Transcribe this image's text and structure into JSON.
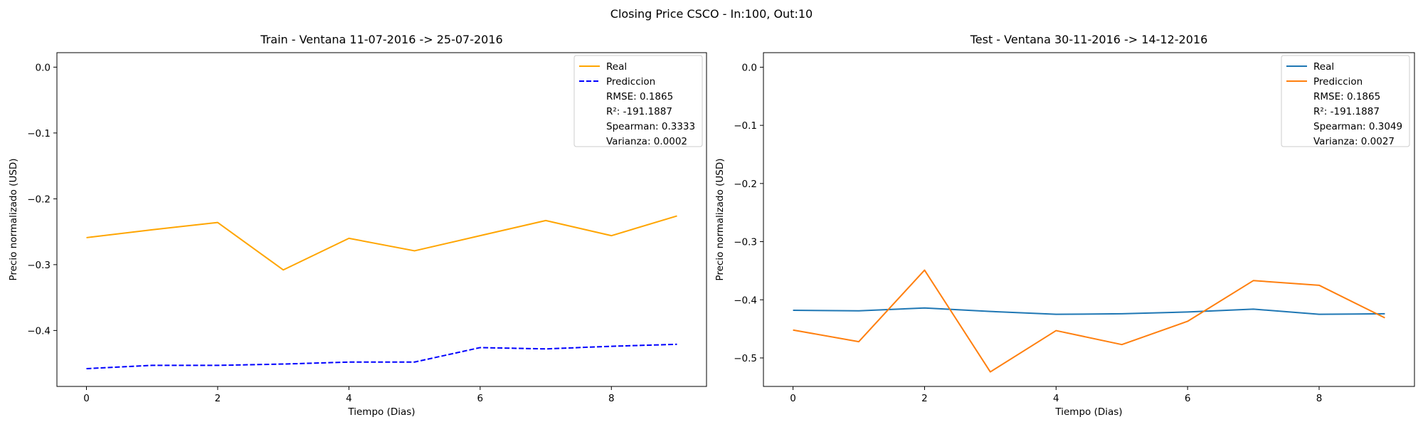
{
  "suptitle": "Closing Price CSCO - In:100, Out:10",
  "chart_data": [
    {
      "type": "line",
      "title": "Train - Ventana 11-07-2016 -> 25-07-2016",
      "xlabel": "Tiempo (Dias)",
      "ylabel": "Precio normalizado (USD)",
      "x": [
        0,
        1,
        2,
        3,
        4,
        5,
        6,
        7,
        8,
        9
      ],
      "xlim": [
        -0.45,
        9.45
      ],
      "ylim": [
        -0.485,
        0.022
      ],
      "xticks": [
        0,
        2,
        4,
        6,
        8
      ],
      "yticks": [
        0.0,
        -0.1,
        -0.2,
        -0.3,
        -0.4
      ],
      "ytick_labels": [
        "0.0",
        "−0.1",
        "−0.2",
        "−0.3",
        "−0.4"
      ],
      "grid": false,
      "legend_position": "top-right",
      "series": [
        {
          "name": "Real",
          "color": "#ffa500",
          "style": "solid",
          "values": [
            -0.259,
            -0.247,
            -0.236,
            -0.308,
            -0.26,
            -0.279,
            -0.256,
            -0.233,
            -0.256,
            -0.226
          ]
        },
        {
          "name": "Prediccion",
          "color": "#0000ff",
          "style": "dashed",
          "values": [
            -0.458,
            -0.453,
            -0.453,
            -0.451,
            -0.448,
            -0.448,
            -0.426,
            -0.428,
            -0.424,
            -0.421
          ]
        }
      ],
      "legend_extra": [
        "RMSE: 0.1865",
        "R²: -191.1887",
        "Spearman: 0.3333",
        "Varianza: 0.0002"
      ]
    },
    {
      "type": "line",
      "title": "Test - Ventana 30-11-2016 -> 14-12-2016",
      "xlabel": "Tiempo (Dias)",
      "ylabel": "Precio normalizado (USD)",
      "x": [
        0,
        1,
        2,
        3,
        4,
        5,
        6,
        7,
        8,
        9
      ],
      "xlim": [
        -0.45,
        9.45
      ],
      "ylim": [
        -0.549,
        0.025
      ],
      "xticks": [
        0,
        2,
        4,
        6,
        8
      ],
      "yticks": [
        0.0,
        -0.1,
        -0.2,
        -0.3,
        -0.4,
        -0.5
      ],
      "ytick_labels": [
        "0.0",
        "−0.1",
        "−0.2",
        "−0.3",
        "−0.4",
        "−0.5"
      ],
      "grid": false,
      "legend_position": "top-right",
      "series": [
        {
          "name": "Real",
          "color": "#1f77b4",
          "style": "solid",
          "values": [
            -0.418,
            -0.419,
            -0.414,
            -0.42,
            -0.425,
            -0.424,
            -0.421,
            -0.416,
            -0.425,
            -0.424
          ]
        },
        {
          "name": "Prediccion",
          "color": "#ff7f0e",
          "style": "solid",
          "values": [
            -0.452,
            -0.472,
            -0.349,
            -0.524,
            -0.453,
            -0.477,
            -0.437,
            -0.367,
            -0.375,
            -0.431
          ]
        }
      ],
      "legend_extra": [
        "RMSE: 0.1865",
        "R²: -191.1887",
        "Spearman: 0.3049",
        "Varianza: 0.0027"
      ]
    }
  ]
}
